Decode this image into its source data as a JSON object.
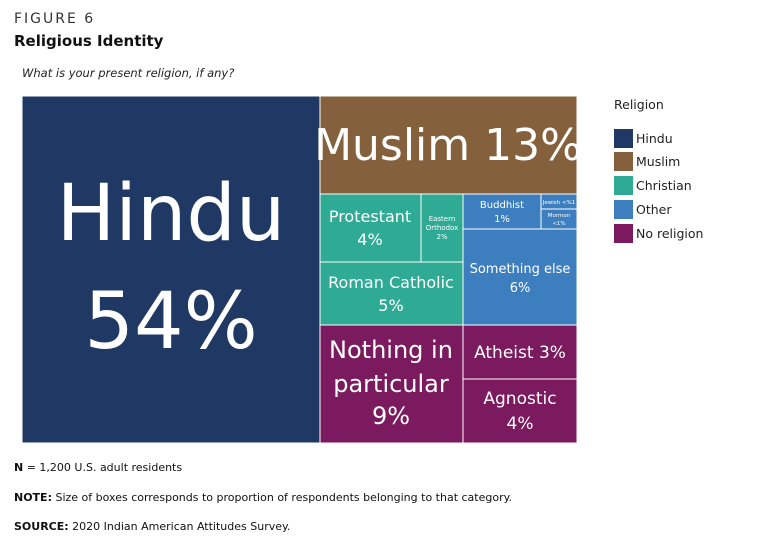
{
  "figure": {
    "label": "FIGURE 6",
    "title": "Religious Identity",
    "question": "What is your present religion, if any?"
  },
  "legend": {
    "title": "Religion",
    "items": [
      {
        "label": "Hindu",
        "color": "#1f3864"
      },
      {
        "label": "Muslim",
        "color": "#85603d"
      },
      {
        "label": "Christian",
        "color": "#2eaa95"
      },
      {
        "label": "Other",
        "color": "#3d7ebf"
      },
      {
        "label": "No religion",
        "color": "#7b1a5e"
      }
    ]
  },
  "chart_data": {
    "type": "treemap",
    "groups": [
      {
        "name": "Hindu",
        "color": "#1f3864",
        "items": [
          {
            "label": "Hindu",
            "value_text": "54%",
            "value": 54
          }
        ]
      },
      {
        "name": "Muslim",
        "color": "#85603d",
        "items": [
          {
            "label": "Muslim",
            "value_text": "13%",
            "value": 13
          }
        ]
      },
      {
        "name": "Christian",
        "color": "#2eaa95",
        "items": [
          {
            "label": "Protestant",
            "value_text": "4%",
            "value": 4
          },
          {
            "label": "Eastern Orthodox",
            "value_text": "2%",
            "value": 2
          },
          {
            "label": "Roman Catholic",
            "value_text": "5%",
            "value": 5
          }
        ]
      },
      {
        "name": "Other",
        "color": "#3d7ebf",
        "items": [
          {
            "label": "Buddhist",
            "value_text": "1%",
            "value": 1
          },
          {
            "label": "Jewish",
            "value_text": "<%1",
            "value": 0.5
          },
          {
            "label": "Mormon",
            "value_text": "<1%",
            "value": 0.5
          },
          {
            "label": "Something else",
            "value_text": "6%",
            "value": 6
          }
        ]
      },
      {
        "name": "No religion",
        "color": "#7b1a5e",
        "items": [
          {
            "label": "Nothing in particular",
            "value_text": "9%",
            "value": 9
          },
          {
            "label": "Atheist",
            "value_text": "3%",
            "value": 3
          },
          {
            "label": "Agnostic",
            "value_text": "4%",
            "value": 4
          }
        ]
      }
    ]
  },
  "footnotes": {
    "n_bold": "N",
    "n_text": " = 1,200 U.S. adult residents",
    "note_bold": "NOTE:",
    "note_text": " Size of boxes corresponds to proportion of respondents belonging to that category.",
    "source_bold": "SOURCE:",
    "source_text": " 2020 Indian American Attitudes Survey."
  }
}
